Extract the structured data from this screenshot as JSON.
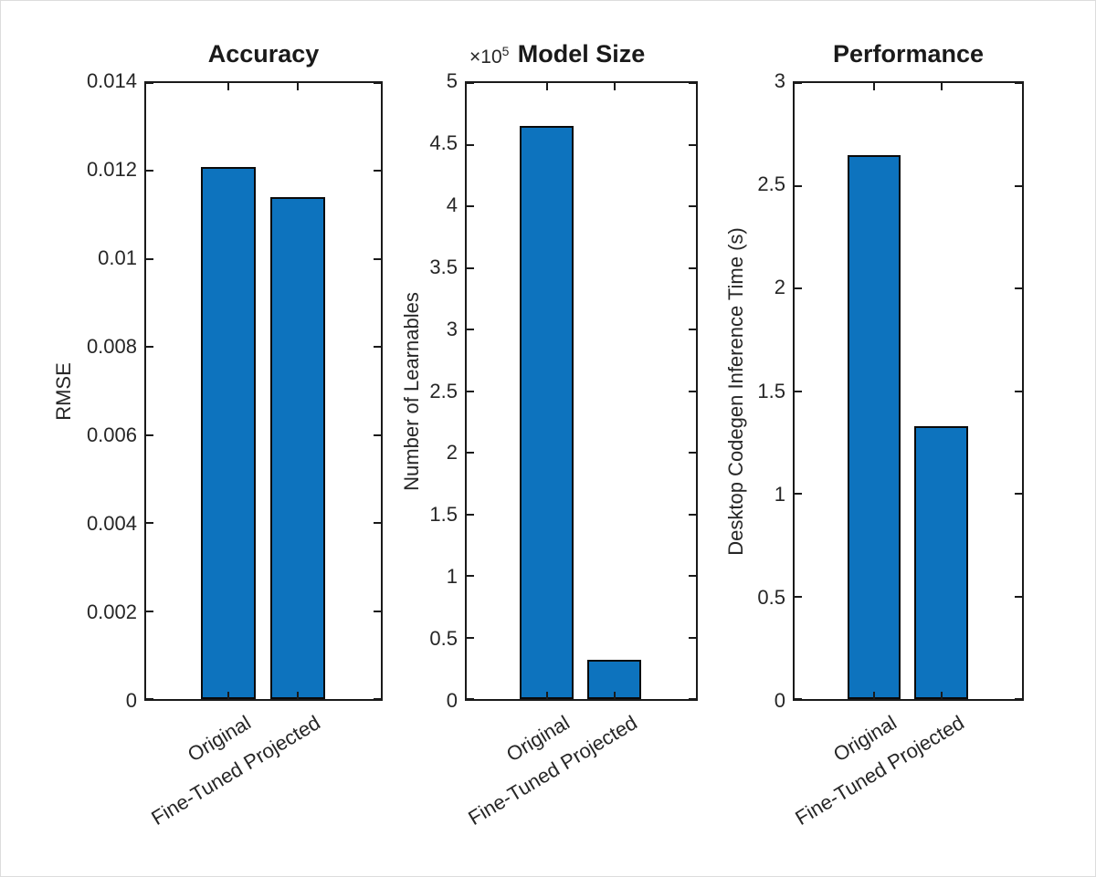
{
  "figure": {
    "background": "#ffffff",
    "frame_color": "#dcdcdc"
  },
  "colors": {
    "bar_fill": "#0d73be",
    "bar_edge": "#0a0a0a",
    "axis": "#1a1a1a",
    "text": "#262626",
    "title_text": "#1a1a1a"
  },
  "chart_data": [
    {
      "type": "bar",
      "title": "Accuracy",
      "ylabel": "RMSE",
      "categories": [
        "Original",
        "Fine-Tuned Projected"
      ],
      "values": [
        0.0121,
        0.0114
      ],
      "ylim": [
        0,
        0.014
      ],
      "yticks": [
        0,
        0.002,
        0.004,
        0.006,
        0.008,
        0.01,
        0.012,
        0.014
      ],
      "ytick_labels": [
        "0",
        "0.002",
        "0.004",
        "0.006",
        "0.008",
        "0.01",
        "0.012",
        "0.014"
      ],
      "grid": false,
      "legend": null,
      "bar_color": "#0d73be"
    },
    {
      "type": "bar",
      "title": "Model Size",
      "ylabel": "Number of Learnables",
      "y_exponent": {
        "base": "×10",
        "power": "5"
      },
      "categories": [
        "Original",
        "Fine-Tuned Projected"
      ],
      "values": [
        465000,
        32000
      ],
      "values_scaled": [
        4.65,
        0.32
      ],
      "ylim": [
        0,
        5
      ],
      "yticks": [
        0,
        0.5,
        1,
        1.5,
        2,
        2.5,
        3,
        3.5,
        4,
        4.5,
        5
      ],
      "ytick_labels": [
        "0",
        "0.5",
        "1",
        "1.5",
        "2",
        "2.5",
        "3",
        "3.5",
        "4",
        "4.5",
        "5"
      ],
      "grid": false,
      "legend": null,
      "bar_color": "#0d73be"
    },
    {
      "type": "bar",
      "title": "Performance",
      "ylabel": "Desktop Codegen Inference Time (s)",
      "categories": [
        "Original",
        "Fine-Tuned Projected"
      ],
      "values": [
        2.65,
        1.33
      ],
      "ylim": [
        0,
        3
      ],
      "yticks": [
        0,
        0.5,
        1,
        1.5,
        2,
        2.5,
        3
      ],
      "ytick_labels": [
        "0",
        "0.5",
        "1",
        "1.5",
        "2",
        "2.5",
        "3"
      ],
      "grid": false,
      "legend": null,
      "bar_color": "#0d73be"
    }
  ]
}
